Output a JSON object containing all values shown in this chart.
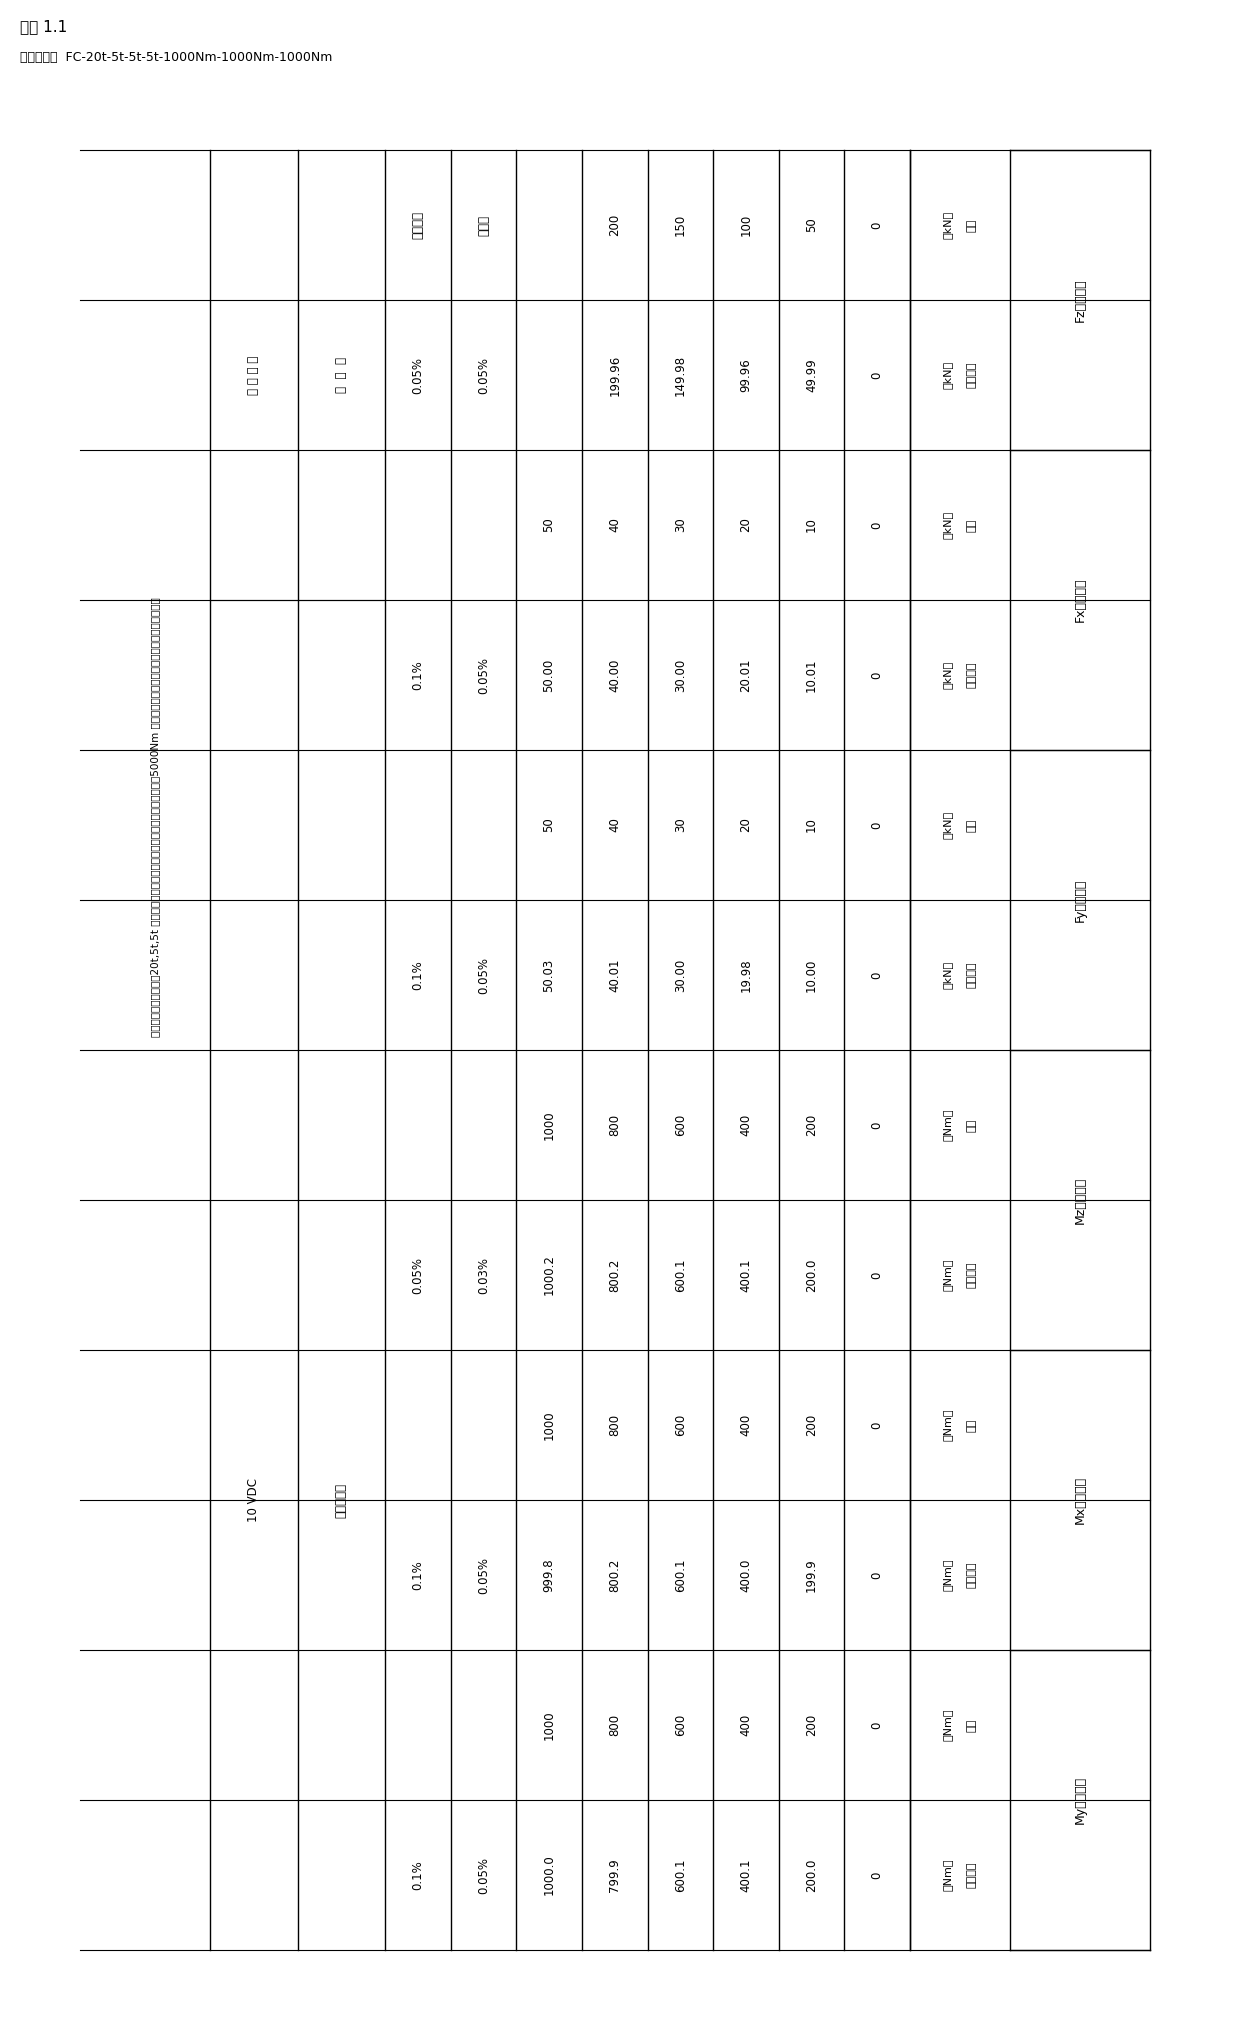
{
  "title1": "附表 1.1",
  "title2": "型号规格：  FC-20t-5t-5t-5t-1000Nm-1000Nm-1000Nm",
  "subtitle": "单分量测试进程读数（20t,5t,5t 叠加机测试，三个方向标准扭矩机测试），显示仪表用5000Nm 的标准扭矩机测试），显示仪表用六分量显示仪",
  "col_groups": [
    {
      "name": "Fz方向加载",
      "subcols": [
        {
          "header1": "负荷",
          "header2": "（kN）",
          "data": [
            "0",
            "50",
            "100",
            "150",
            "200",
            "",
            "重复性",
            "示值误差"
          ]
        },
        {
          "header1": "进程读数",
          "header2": "（kN）",
          "data": [
            "0",
            "49.99",
            "99.96",
            "149.98",
            "199.96",
            "",
            "0.05%",
            "0.05%"
          ]
        }
      ]
    },
    {
      "name": "Fx方向加载",
      "subcols": [
        {
          "header1": "负荷",
          "header2": "（kN）",
          "data": [
            "0",
            "10",
            "20",
            "30",
            "40",
            "50",
            "",
            ""
          ]
        },
        {
          "header1": "进程读数",
          "header2": "（kN）",
          "data": [
            "0",
            "10.01",
            "20.01",
            "30.00",
            "40.00",
            "50.00",
            "0.05%",
            "0.1%"
          ]
        }
      ]
    },
    {
      "name": "Fy方向加载",
      "subcols": [
        {
          "header1": "负荷",
          "header2": "（kN）",
          "data": [
            "0",
            "10",
            "20",
            "30",
            "40",
            "50",
            "",
            ""
          ]
        },
        {
          "header1": "进程读数",
          "header2": "（kN）",
          "data": [
            "0",
            "10.00",
            "19.98",
            "30.00",
            "40.01",
            "50.03",
            "0.05%",
            "0.1%"
          ]
        }
      ]
    },
    {
      "name": "Mz方向加载",
      "subcols": [
        {
          "header1": "负荷",
          "header2": "（Nm）",
          "data": [
            "0",
            "200",
            "400",
            "600",
            "800",
            "1000",
            "",
            ""
          ]
        },
        {
          "header1": "进程读数",
          "header2": "（Nm）",
          "data": [
            "0",
            "200.0",
            "400.1",
            "600.1",
            "800.2",
            "1000.2",
            "0.03%",
            "0.05%"
          ]
        }
      ]
    },
    {
      "name": "Mx方向加载",
      "subcols": [
        {
          "header1": "负荷",
          "header2": "（Nm）",
          "data": [
            "0",
            "200",
            "400",
            "600",
            "800",
            "1000",
            "",
            ""
          ]
        },
        {
          "header1": "进程读数",
          "header2": "（Nm）",
          "data": [
            "0",
            "199.9",
            "400.0",
            "600.1",
            "800.2",
            "999.8",
            "0.05%",
            "0.1%"
          ]
        }
      ]
    },
    {
      "name": "My方向加载",
      "subcols": [
        {
          "header1": "负荷",
          "header2": "（Nm）",
          "data": [
            "0",
            "200",
            "400",
            "600",
            "800",
            "1000",
            "",
            ""
          ]
        },
        {
          "header1": "进程读数",
          "header2": "（Nm）",
          "data": [
            "0",
            "200.0",
            "400.1",
            "600.1",
            "799.9",
            "1000.0",
            "0.05%",
            "0.1%"
          ]
        }
      ]
    }
  ],
  "bottom_rows": [
    {
      "label": "指  示  器",
      "value": "六分量仪表"
    },
    {
      "label": "激 励 电 压",
      "value": "10 VDC"
    }
  ]
}
